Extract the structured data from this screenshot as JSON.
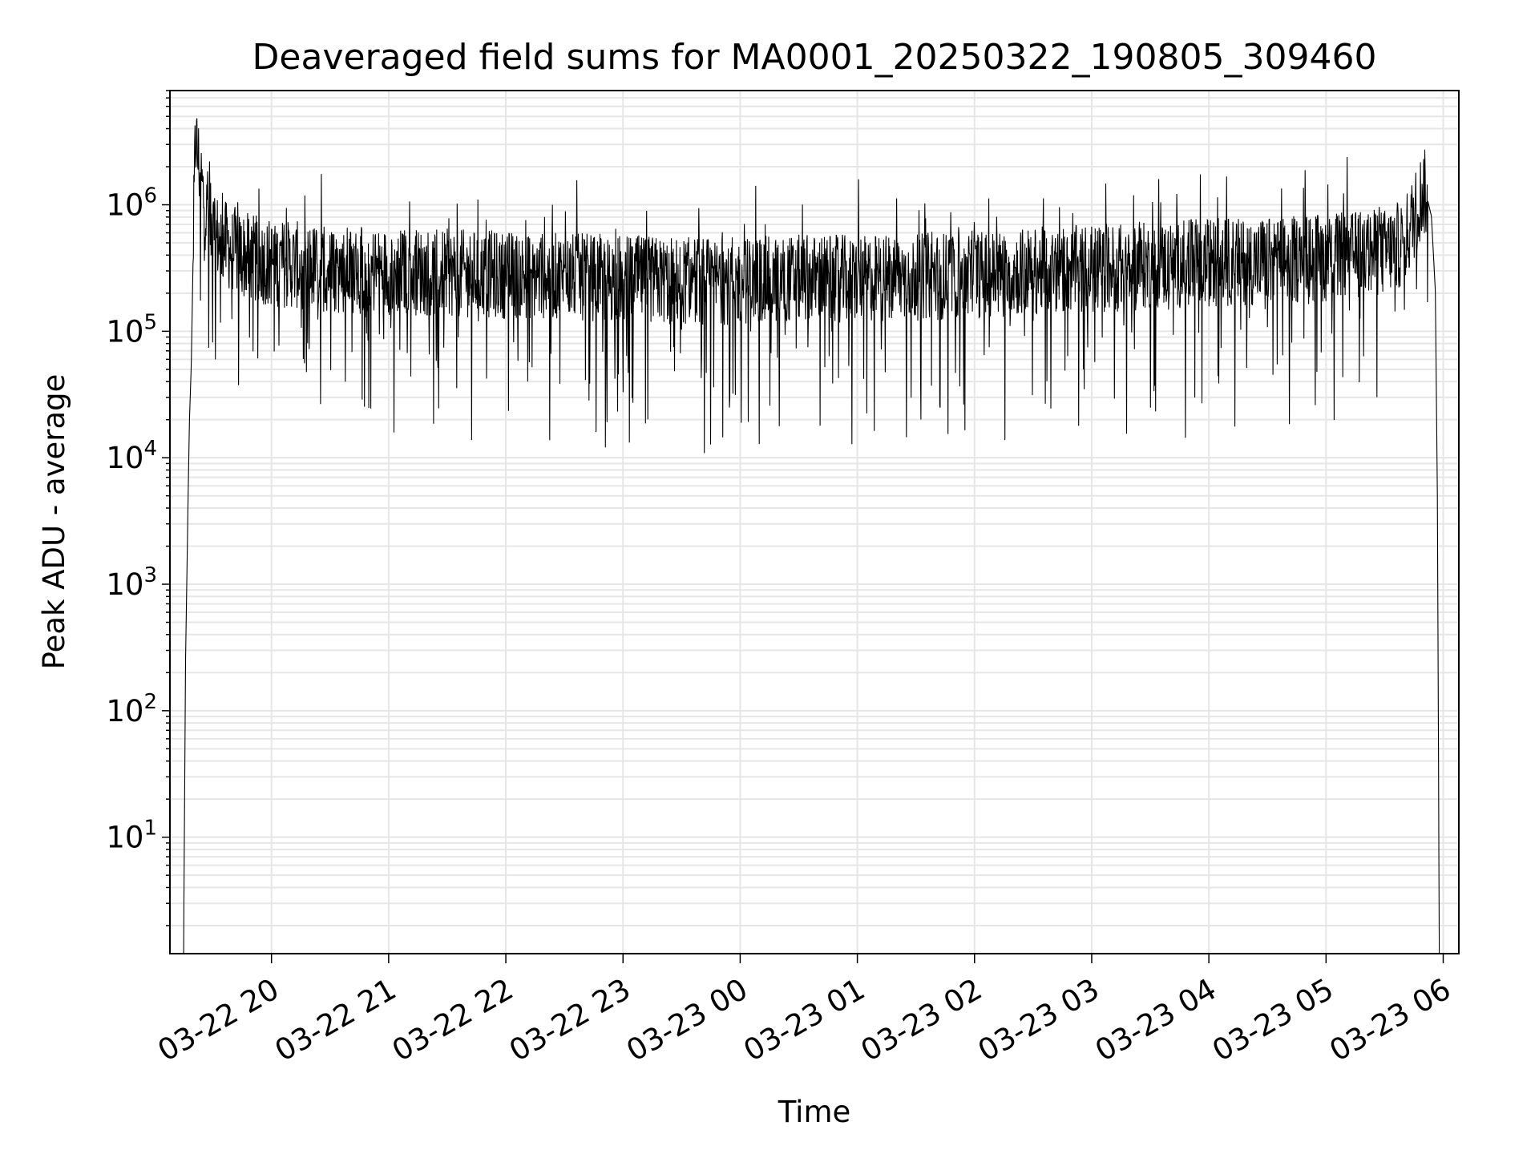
{
  "chart_data": {
    "type": "line",
    "title": "Deaveraged field sums for MA0001_20250322_190805_309460",
    "xlabel": "Time",
    "ylabel": "Peak ADU - average",
    "yscale": "log",
    "ylim": [
      1.2,
      8000000
    ],
    "xlim": [
      "2025-03-22 19:08",
      "2025-03-23 06:08"
    ],
    "grid": true,
    "line_color": "#000000",
    "grid_color": "#e6e6e6",
    "x_ticks": [
      "2025-03-22 20:00",
      "2025-03-22 21:00",
      "2025-03-22 22:00",
      "2025-03-22 23:00",
      "2025-03-23 00:00",
      "2025-03-23 01:00",
      "2025-03-23 02:00",
      "2025-03-23 03:00",
      "2025-03-23 04:00",
      "2025-03-23 05:00",
      "2025-03-23 06:00"
    ],
    "x_tick_labels": [
      "03-22 20",
      "03-22 21",
      "03-22 22",
      "03-22 23",
      "03-23 00",
      "03-23 01",
      "03-23 02",
      "03-23 03",
      "03-23 04",
      "03-23 05",
      "03-23 06"
    ],
    "y_ticks": [
      10,
      100,
      1000,
      10000,
      100000,
      1000000
    ],
    "y_tick_labels": [
      {
        "base": "10",
        "exp": "1"
      },
      {
        "base": "10",
        "exp": "2"
      },
      {
        "base": "10",
        "exp": "3"
      },
      {
        "base": "10",
        "exp": "4"
      },
      {
        "base": "10",
        "exp": "5"
      },
      {
        "base": "10",
        "exp": "6"
      }
    ],
    "series": [
      {
        "x": [
          "2025-03-22 19:15",
          "2025-03-22 19:16",
          "2025-03-22 19:17",
          "2025-03-22 19:18",
          "2025-03-22 19:19",
          "2025-03-22 19:20",
          "2025-03-22 19:21",
          "2025-03-22 19:23",
          "2025-03-22 19:25",
          "2025-03-22 19:27",
          "2025-03-22 19:30",
          "2025-03-22 19:35",
          "2025-03-22 19:40",
          "2025-03-22 19:45",
          "2025-03-22 19:50",
          "2025-03-22 19:55",
          "2025-03-22 20:00",
          "2025-03-22 20:15",
          "2025-03-22 20:30",
          "2025-03-22 20:45",
          "2025-03-22 21:00",
          "2025-03-22 21:30",
          "2025-03-22 22:00",
          "2025-03-22 22:30",
          "2025-03-22 23:00",
          "2025-03-22 23:30",
          "2025-03-23 00:00",
          "2025-03-23 00:30",
          "2025-03-23 01:00",
          "2025-03-23 01:30",
          "2025-03-23 02:00",
          "2025-03-23 02:30",
          "2025-03-23 03:00",
          "2025-03-23 03:30",
          "2025-03-23 04:00",
          "2025-03-23 04:30",
          "2025-03-23 05:00",
          "2025-03-23 05:15",
          "2025-03-23 05:30",
          "2025-03-23 05:40",
          "2025-03-23 05:45",
          "2025-03-23 05:48",
          "2025-03-23 05:50",
          "2025-03-23 05:52",
          "2025-03-23 05:54",
          "2025-03-23 05:56",
          "2025-03-23 05:57",
          "2025-03-23 05:58"
        ],
        "y": [
          1.2,
          250,
          2500,
          20000,
          60000,
          500000,
          3500000,
          2000000,
          1200000,
          800000,
          600000,
          500000,
          450000,
          400000,
          380000,
          360000,
          350000,
          330000,
          310000,
          300000,
          300000,
          290000,
          280000,
          270000,
          260000,
          250000,
          250000,
          260000,
          260000,
          270000,
          280000,
          300000,
          310000,
          330000,
          350000,
          360000,
          380000,
          400000,
          420000,
          500000,
          800000,
          1100000,
          1300000,
          1100000,
          800000,
          200000,
          5000,
          1.2
        ],
        "fluctuation_band": "approx. 1.5e5 to 8e5, dips to ~2e4"
      }
    ]
  }
}
